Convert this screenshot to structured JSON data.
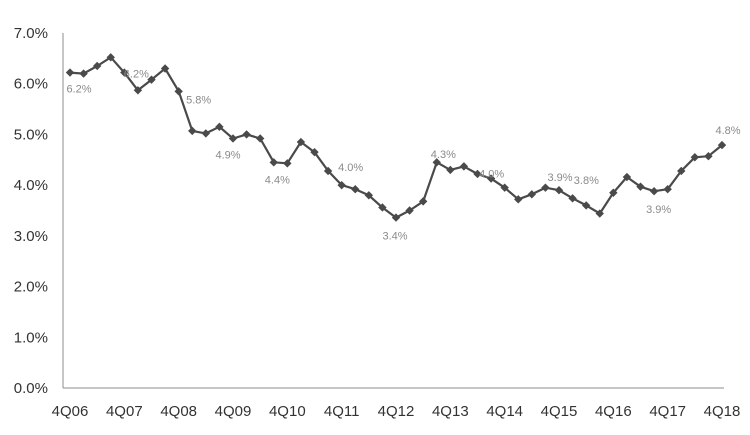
{
  "chart_data": {
    "type": "line",
    "title": "",
    "xlabel": "",
    "ylabel": "",
    "ylim": [
      0,
      0.07
    ],
    "y_ticks": [
      "0.0%",
      "1.0%",
      "2.0%",
      "3.0%",
      "4.0%",
      "5.0%",
      "6.0%",
      "7.0%"
    ],
    "x_ticks": [
      "4Q06",
      "4Q07",
      "4Q08",
      "4Q09",
      "4Q10",
      "4Q11",
      "4Q12",
      "4Q13",
      "4Q14",
      "4Q15",
      "4Q16",
      "4Q17",
      "4Q18"
    ],
    "grid": false,
    "legend": "none",
    "line_color": "#4a4a4a",
    "series": [
      {
        "values": [
          6.22,
          6.2,
          6.35,
          6.52,
          6.22,
          5.87,
          6.08,
          6.3,
          5.85,
          5.07,
          5.02,
          5.15,
          4.92,
          5.0,
          4.92,
          4.45,
          4.43,
          4.85,
          4.65,
          4.28,
          4.0,
          3.92,
          3.8,
          3.56,
          3.36,
          3.5,
          3.68,
          4.45,
          4.3,
          4.37,
          4.22,
          4.13,
          3.95,
          3.72,
          3.82,
          3.95,
          3.9,
          3.74,
          3.6,
          3.44,
          3.85,
          4.16,
          3.97,
          3.88,
          3.92,
          4.28,
          4.55,
          4.57,
          4.79
        ]
      }
    ],
    "data_labels": [
      {
        "index": 0,
        "text": "6.2%"
      },
      {
        "index": 4,
        "text": "6.2%"
      },
      {
        "index": 8,
        "text": "5.8%"
      },
      {
        "index": 12,
        "text": "4.9%"
      },
      {
        "index": 16,
        "text": "4.4%"
      },
      {
        "index": 20,
        "text": "4.0%"
      },
      {
        "index": 24,
        "text": "3.4%"
      },
      {
        "index": 28,
        "text": "4.3%"
      },
      {
        "index": 32,
        "text": "4.0%"
      },
      {
        "index": 36,
        "text": "3.9%"
      },
      {
        "index": 40,
        "text": "3.8%"
      },
      {
        "index": 44,
        "text": "3.9%"
      },
      {
        "index": 48,
        "text": "4.8%"
      }
    ]
  }
}
